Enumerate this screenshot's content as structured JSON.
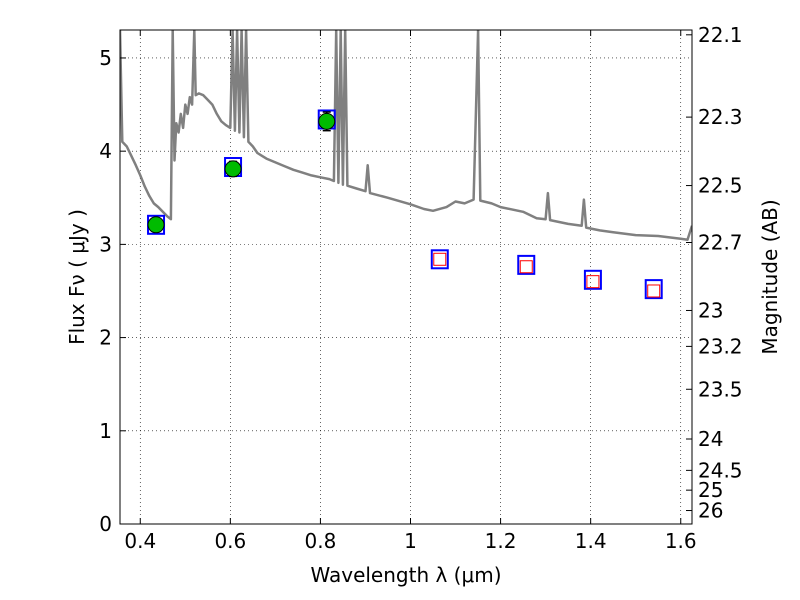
{
  "chart_data": {
    "type": "scatter",
    "xlabel": "Wavelength  λ (μm)",
    "ylabel": "Flux  Fν  ( μJy )",
    "ylabel_right": "Magnitude (AB)",
    "xlim": [
      0.355,
      1.625
    ],
    "ylim": [
      0,
      5.3
    ],
    "grid": true,
    "x_ticks": [
      0.4,
      0.6,
      0.8,
      1.0,
      1.2,
      1.4,
      1.6
    ],
    "x_tick_labels": [
      "0.4",
      "0.6",
      "0.8",
      "1",
      "1.2",
      "1.4",
      "1.6"
    ],
    "y_ticks": [
      0,
      1,
      2,
      3,
      4,
      5
    ],
    "y_tick_labels": [
      "0",
      "1",
      "2",
      "3",
      "4",
      "5"
    ],
    "right_ticks": [
      {
        "mag": 22.1,
        "label": "22.1"
      },
      {
        "mag": 22.3,
        "label": "22.3"
      },
      {
        "mag": 22.5,
        "label": "22.5"
      },
      {
        "mag": 22.7,
        "label": "22.7"
      },
      {
        "mag": 23.0,
        "label": "23"
      },
      {
        "mag": 23.2,
        "label": "23.2"
      },
      {
        "mag": 23.5,
        "label": "23.5"
      },
      {
        "mag": 24.0,
        "label": "24"
      },
      {
        "mag": 24.5,
        "label": "24.5"
      },
      {
        "mag": 25.0,
        "label": "25"
      },
      {
        "mag": 26.0,
        "label": "26"
      }
    ],
    "observed": {
      "color": "#00bb00",
      "points": [
        {
          "x": 0.435,
          "y": 3.21,
          "err": 0.07
        },
        {
          "x": 0.606,
          "y": 3.81,
          "err": 0.08
        },
        {
          "x": 0.814,
          "y": 4.32,
          "err": 0.1
        }
      ]
    },
    "model_photometry": {
      "color": "#0000ff",
      "points": [
        {
          "x": 0.435,
          "y": 3.21
        },
        {
          "x": 0.606,
          "y": 3.83
        },
        {
          "x": 0.814,
          "y": 4.34
        },
        {
          "x": 1.065,
          "y": 2.84
        },
        {
          "x": 1.257,
          "y": 2.78
        },
        {
          "x": 1.405,
          "y": 2.62
        },
        {
          "x": 1.54,
          "y": 2.52
        }
      ]
    },
    "upper_limits": {
      "color": "#ff0000",
      "points": [
        {
          "x": 1.065,
          "y": 2.84
        },
        {
          "x": 1.257,
          "y": 2.76
        },
        {
          "x": 1.405,
          "y": 2.6
        },
        {
          "x": 1.54,
          "y": 2.5
        }
      ]
    },
    "sed_model": {
      "color": "#808080",
      "points": [
        [
          0.355,
          5.3
        ],
        [
          0.36,
          4.1
        ],
        [
          0.37,
          4.05
        ],
        [
          0.38,
          3.95
        ],
        [
          0.39,
          3.85
        ],
        [
          0.4,
          3.74
        ],
        [
          0.41,
          3.62
        ],
        [
          0.42,
          3.52
        ],
        [
          0.43,
          3.44
        ],
        [
          0.44,
          3.4
        ],
        [
          0.45,
          3.35
        ],
        [
          0.46,
          3.3
        ],
        [
          0.468,
          3.27
        ],
        [
          0.472,
          5.3
        ],
        [
          0.476,
          3.9
        ],
        [
          0.48,
          4.3
        ],
        [
          0.485,
          4.2
        ],
        [
          0.49,
          4.4
        ],
        [
          0.495,
          4.25
        ],
        [
          0.5,
          4.5
        ],
        [
          0.505,
          4.4
        ],
        [
          0.51,
          4.58
        ],
        [
          0.515,
          4.5
        ],
        [
          0.52,
          5.3
        ],
        [
          0.523,
          4.6
        ],
        [
          0.53,
          4.62
        ],
        [
          0.54,
          4.6
        ],
        [
          0.55,
          4.55
        ],
        [
          0.56,
          4.5
        ],
        [
          0.57,
          4.4
        ],
        [
          0.58,
          4.32
        ],
        [
          0.59,
          4.28
        ],
        [
          0.6,
          4.25
        ],
        [
          0.605,
          5.3
        ],
        [
          0.61,
          4.22
        ],
        [
          0.615,
          5.3
        ],
        [
          0.62,
          4.2
        ],
        [
          0.625,
          5.3
        ],
        [
          0.63,
          4.15
        ],
        [
          0.635,
          5.3
        ],
        [
          0.64,
          4.1
        ],
        [
          0.65,
          4.05
        ],
        [
          0.66,
          3.98
        ],
        [
          0.67,
          3.95
        ],
        [
          0.68,
          3.92
        ],
        [
          0.7,
          3.88
        ],
        [
          0.72,
          3.84
        ],
        [
          0.74,
          3.8
        ],
        [
          0.76,
          3.77
        ],
        [
          0.78,
          3.74
        ],
        [
          0.8,
          3.72
        ],
        [
          0.82,
          3.7
        ],
        [
          0.83,
          3.68
        ],
        [
          0.835,
          5.3
        ],
        [
          0.84,
          3.66
        ],
        [
          0.845,
          5.3
        ],
        [
          0.85,
          3.64
        ],
        [
          0.855,
          5.3
        ],
        [
          0.86,
          3.63
        ],
        [
          0.88,
          3.6
        ],
        [
          0.9,
          3.57
        ],
        [
          0.905,
          3.85
        ],
        [
          0.91,
          3.55
        ],
        [
          0.95,
          3.5
        ],
        [
          1.0,
          3.43
        ],
        [
          1.03,
          3.38
        ],
        [
          1.05,
          3.36
        ],
        [
          1.08,
          3.4
        ],
        [
          1.1,
          3.46
        ],
        [
          1.12,
          3.44
        ],
        [
          1.14,
          3.48
        ],
        [
          1.15,
          5.3
        ],
        [
          1.155,
          3.47
        ],
        [
          1.18,
          3.44
        ],
        [
          1.2,
          3.4
        ],
        [
          1.25,
          3.35
        ],
        [
          1.28,
          3.28
        ],
        [
          1.3,
          3.27
        ],
        [
          1.305,
          3.55
        ],
        [
          1.31,
          3.26
        ],
        [
          1.35,
          3.22
        ],
        [
          1.38,
          3.2
        ],
        [
          1.385,
          3.48
        ],
        [
          1.39,
          3.18
        ],
        [
          1.42,
          3.15
        ],
        [
          1.45,
          3.13
        ],
        [
          1.5,
          3.1
        ],
        [
          1.55,
          3.09
        ],
        [
          1.6,
          3.06
        ],
        [
          1.615,
          3.05
        ],
        [
          1.625,
          3.2
        ]
      ]
    }
  }
}
